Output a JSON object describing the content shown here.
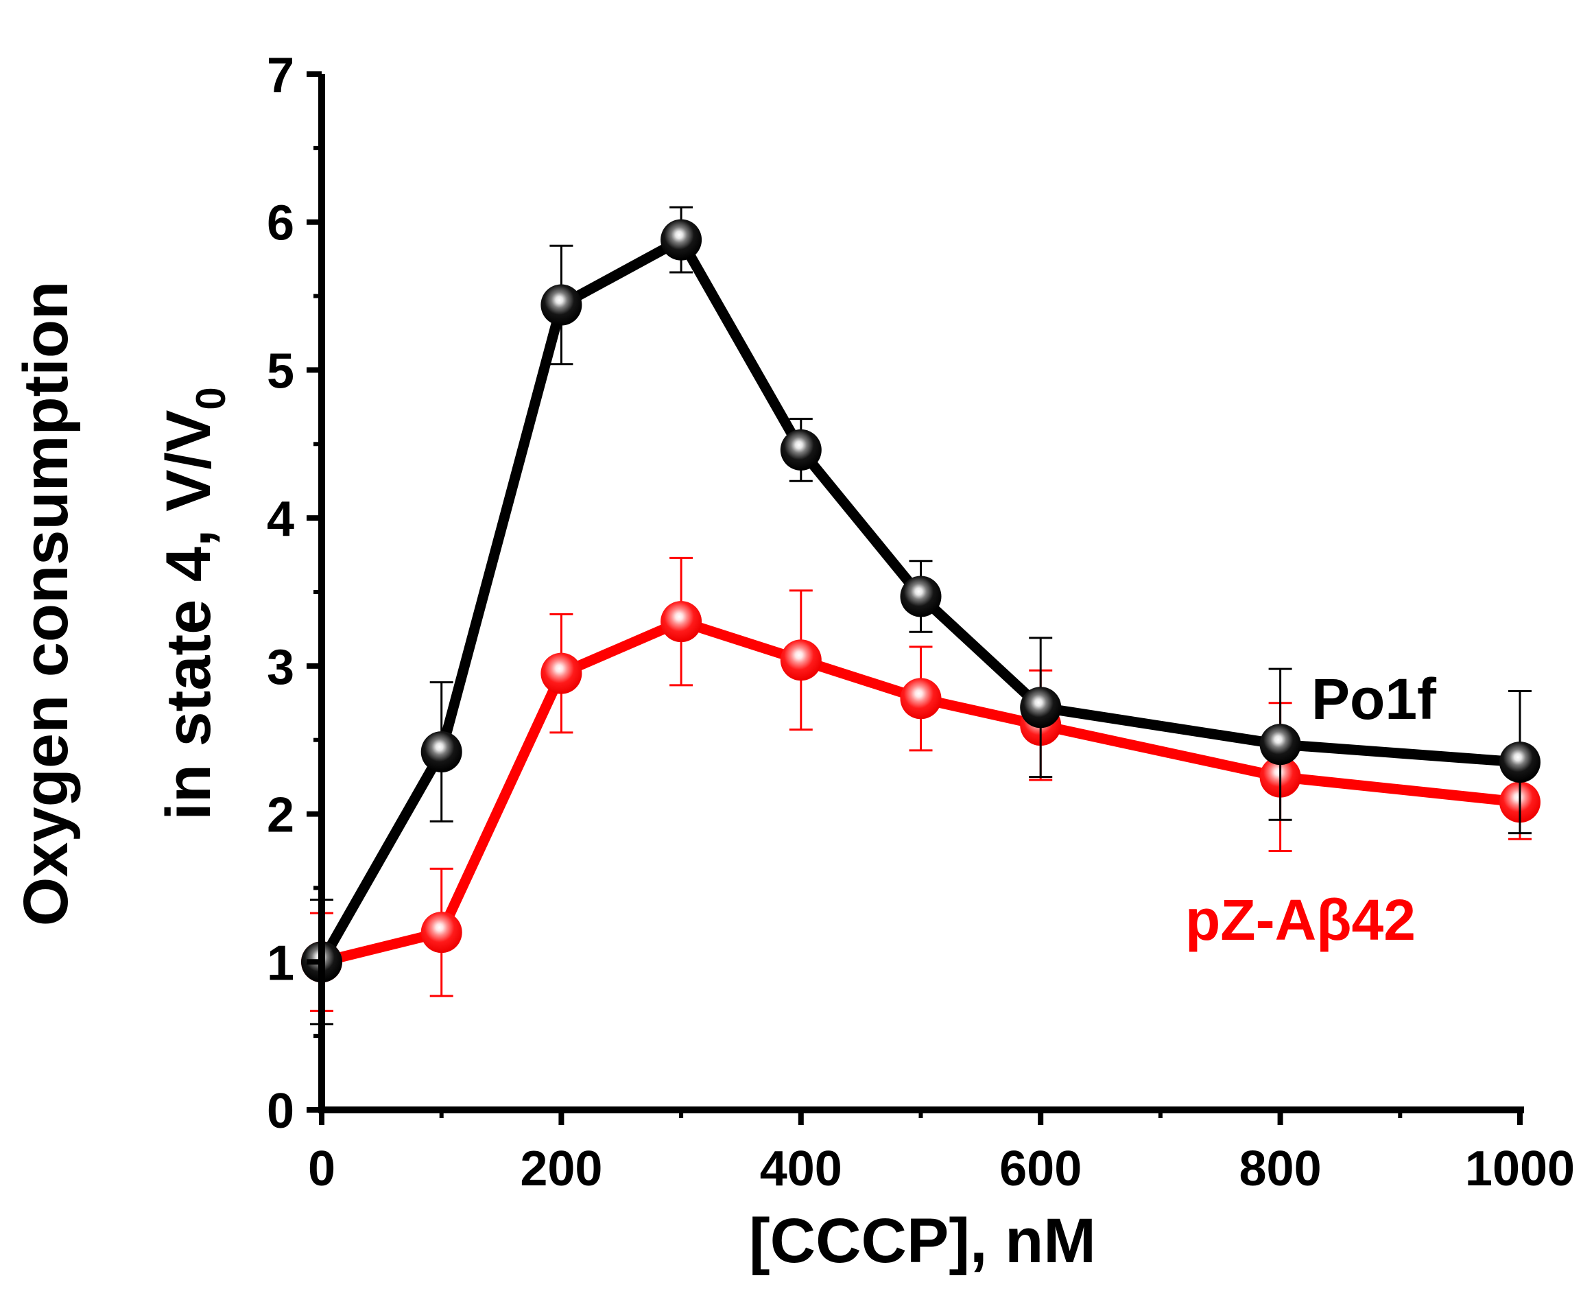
{
  "chart_data": {
    "type": "line",
    "title": "",
    "xlabel": "[CCCP], nM",
    "ylabel_line1": "Oxygen consumption",
    "ylabel_line2_main": "in state 4, V/V",
    "ylabel_line2_sub": "0",
    "xlim": [
      0,
      1000
    ],
    "ylim": [
      0,
      7
    ],
    "x_ticks": [
      0,
      200,
      400,
      600,
      800,
      1000
    ],
    "x_ticks_minor": [
      100,
      300,
      500,
      700,
      900
    ],
    "y_ticks": [
      0,
      1,
      2,
      3,
      4,
      5,
      6,
      7
    ],
    "y_ticks_minor": [
      0.5,
      1.5,
      2.5,
      3.5,
      4.5,
      5.5,
      6.5
    ],
    "grid": false,
    "series": [
      {
        "name": "Po1f",
        "color": "#000000",
        "x": [
          0,
          100,
          200,
          300,
          400,
          500,
          600,
          800,
          1000
        ],
        "y": [
          1.0,
          2.42,
          5.44,
          5.88,
          4.46,
          3.47,
          2.72,
          2.47,
          2.35
        ],
        "yerr": [
          0.42,
          0.47,
          0.4,
          0.22,
          0.21,
          0.24,
          0.47,
          0.51,
          0.48
        ],
        "legend_position": "right, above red series"
      },
      {
        "name": "pZ-Aβ42",
        "color": "#ff0000",
        "x": [
          0,
          100,
          200,
          300,
          400,
          500,
          600,
          800,
          1000
        ],
        "y": [
          1.0,
          1.2,
          2.95,
          3.3,
          3.04,
          2.78,
          2.6,
          2.25,
          2.08
        ],
        "yerr": [
          0.33,
          0.43,
          0.4,
          0.43,
          0.47,
          0.35,
          0.37,
          0.5,
          0.25
        ],
        "legend_position": "right, below black series"
      }
    ]
  }
}
